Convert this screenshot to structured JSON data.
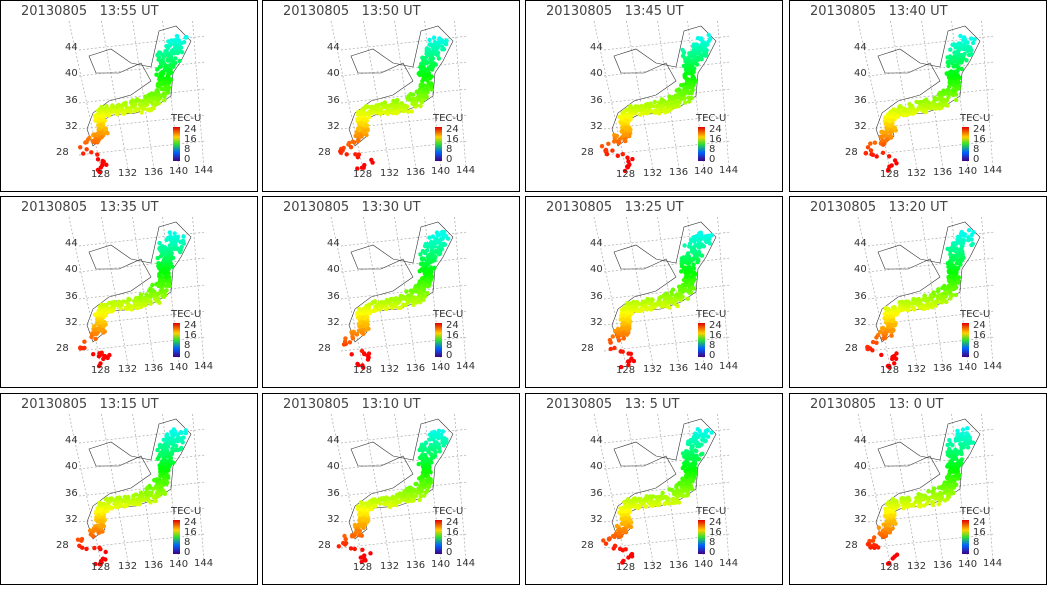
{
  "panels": [
    {
      "title": "20130805   13:55 UT"
    },
    {
      "title": "20130805   13:50 UT"
    },
    {
      "title": "20130805   13:45 UT"
    },
    {
      "title": "20130805   13:40 UT"
    },
    {
      "title": "20130805   13:35 UT"
    },
    {
      "title": "20130805   13:30 UT"
    },
    {
      "title": "20130805   13:25 UT"
    },
    {
      "title": "20130805   13:20 UT"
    },
    {
      "title": "20130805   13:15 UT"
    },
    {
      "title": "20130805   13:10 UT"
    },
    {
      "title": "20130805   13: 5 UT"
    },
    {
      "title": "20130805   13: 0 UT"
    }
  ],
  "map": {
    "lat_labels": [
      "44",
      "40",
      "36",
      "32",
      "28"
    ],
    "lon_labels": [
      "128",
      "132",
      "136",
      "140",
      "144"
    ],
    "colorbar": {
      "title": "TEC-U",
      "ticks": [
        "24",
        "16",
        "8",
        "0"
      ]
    }
  }
}
